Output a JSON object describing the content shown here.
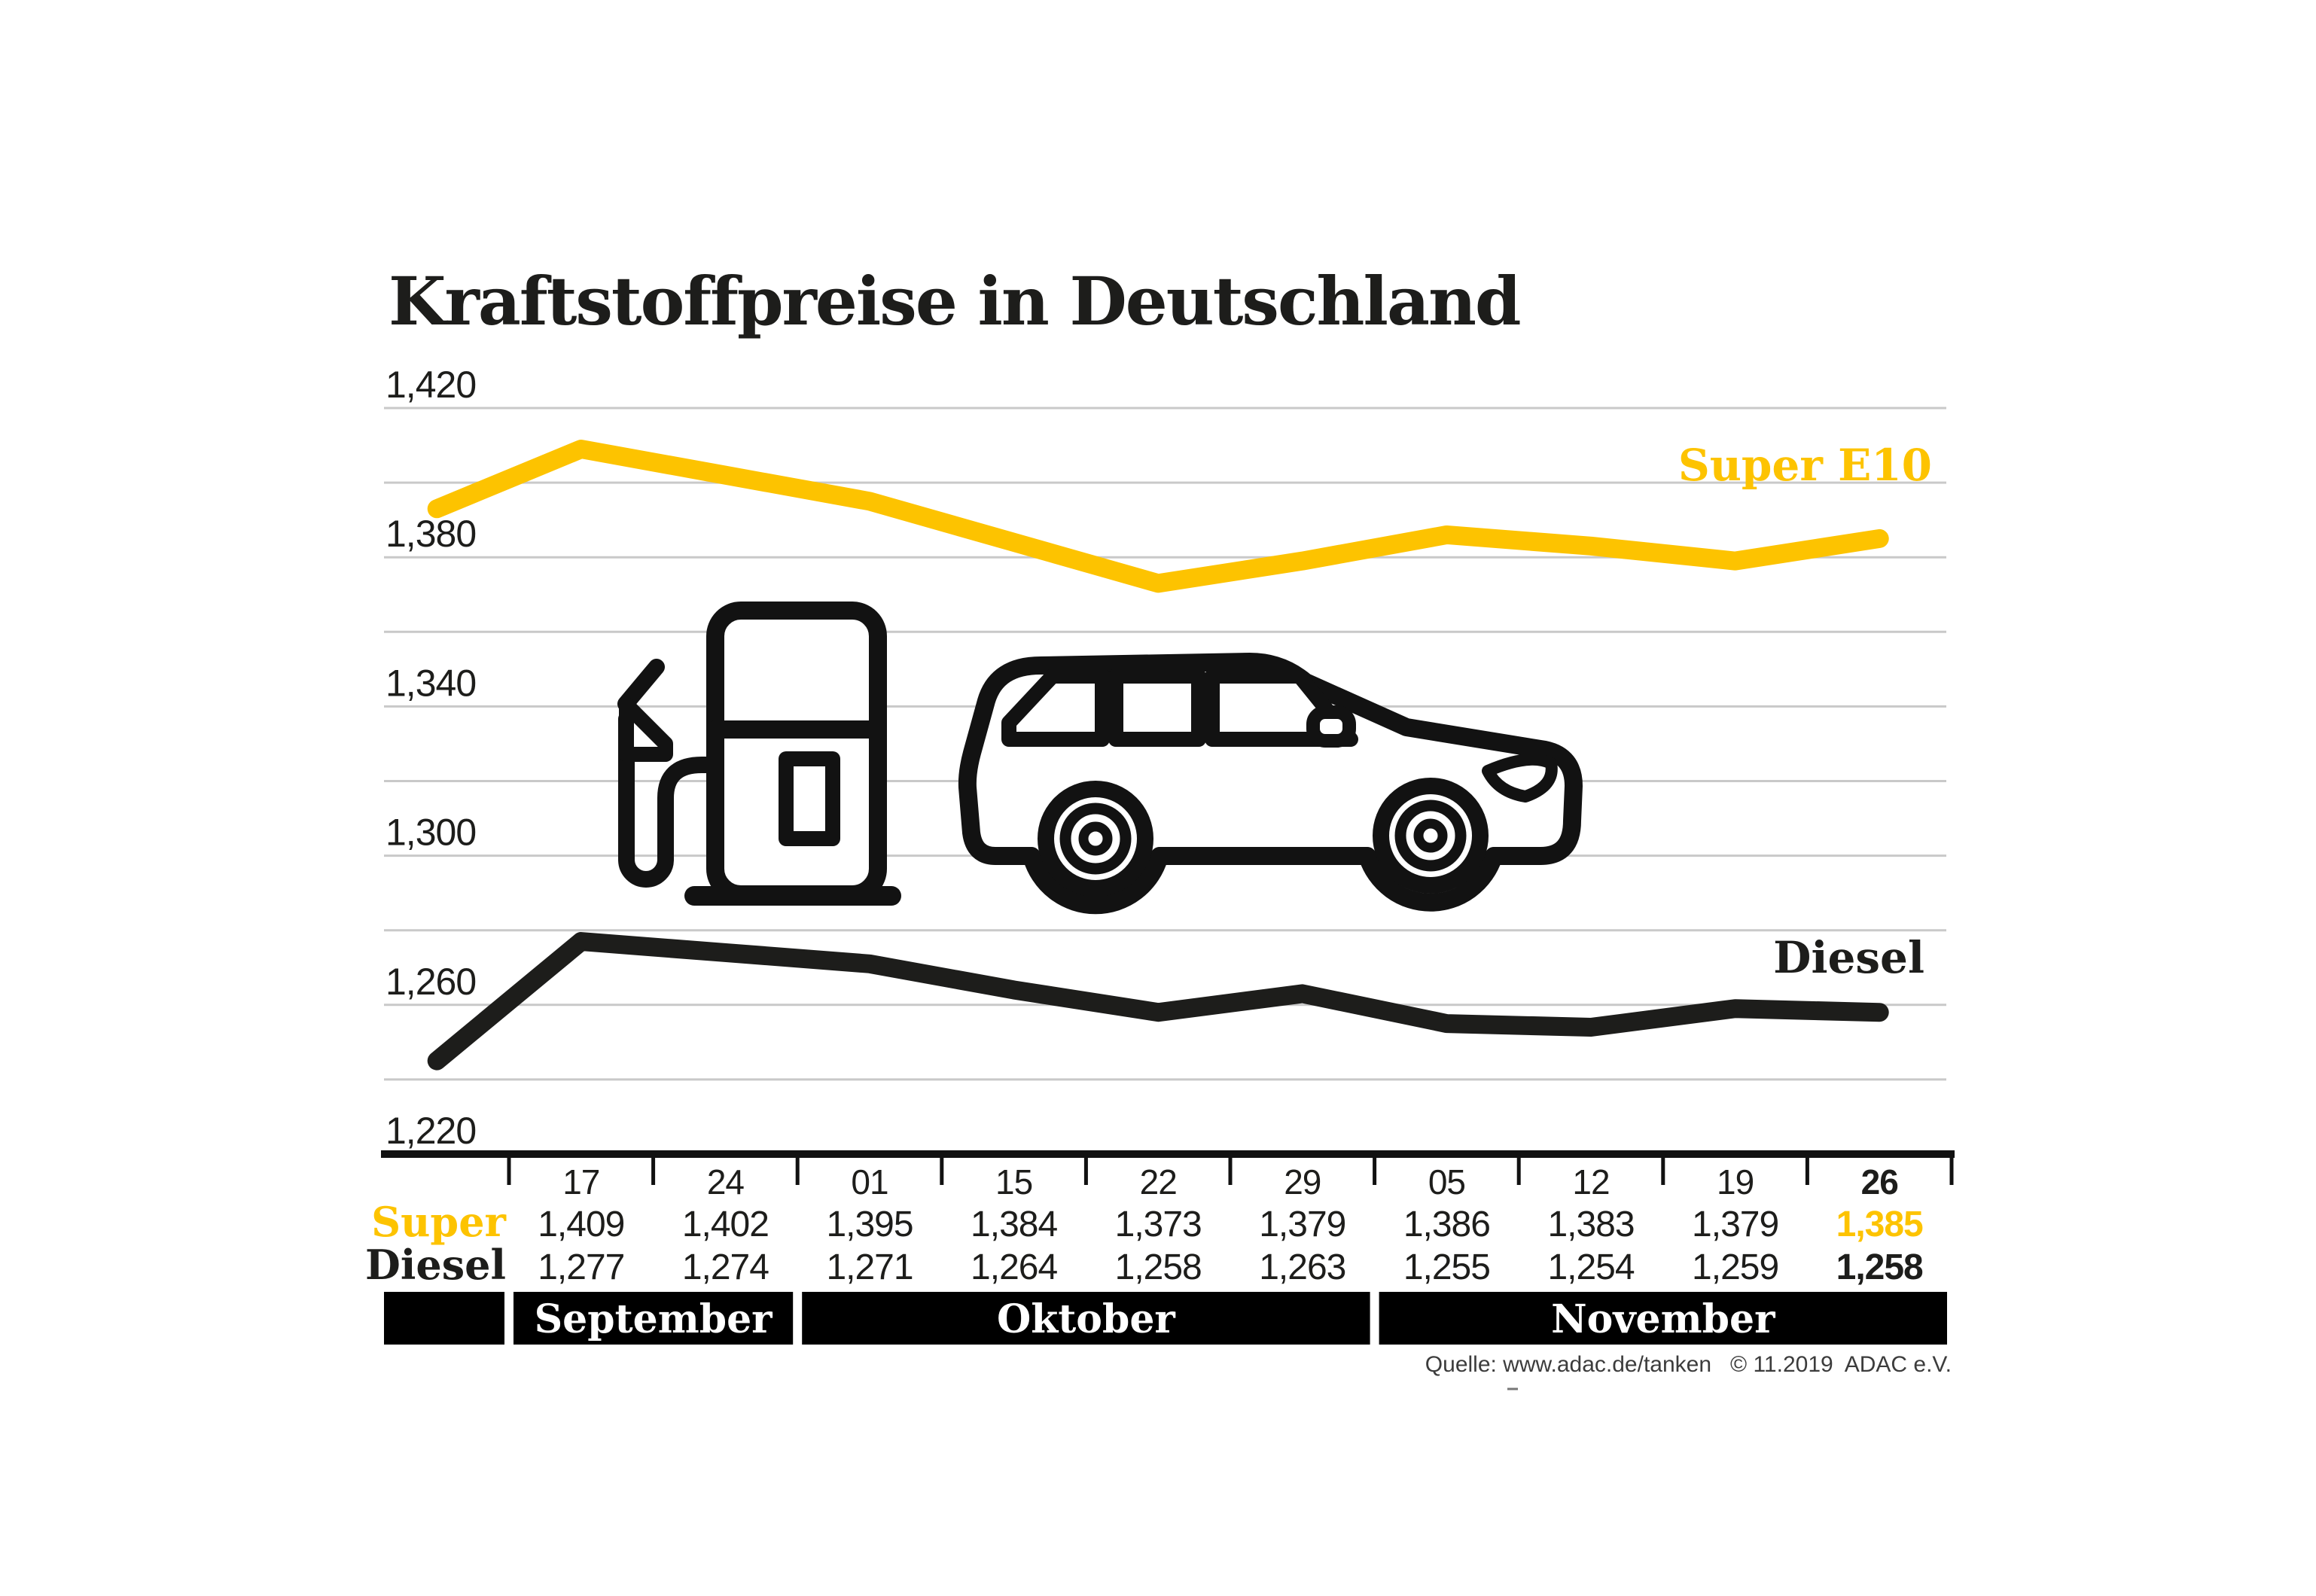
{
  "title": "Kraftstoffpreise in Deutschland",
  "source_note": "Quelle: www.adac.de/tanken   © 11.2019  ADAC e.V.",
  "colors": {
    "super": "#fdc300",
    "diesel": "#1d1d1b",
    "grid": "#c9c9c9",
    "axis": "#111111",
    "month_band_bg": "#000000",
    "month_band_text": "#ffffff"
  },
  "icons": [
    "fuel-pump-icon",
    "car-icon"
  ],
  "chart_data": {
    "type": "line",
    "title": "Kraftstoffpreise in Deutschland",
    "x_tick_labels": [
      "17",
      "24",
      "01",
      "15",
      "22",
      "29",
      "05",
      "12",
      "19",
      "26"
    ],
    "highlight_index": 9,
    "months": [
      {
        "label": "September",
        "from": 0,
        "to": 1
      },
      {
        "label": "Oktober",
        "from": 2,
        "to": 5
      },
      {
        "label": "November",
        "from": 6,
        "to": 9
      }
    ],
    "y_axis": {
      "tick_values": [
        1420,
        1380,
        1340,
        1300,
        1260,
        1220
      ],
      "gridline_step": 20,
      "min": 1220,
      "max": 1420,
      "decimal_format": "comma"
    },
    "legend_position": "right-inline",
    "grid": true,
    "series": [
      {
        "name": "Super E10",
        "row_label": "Super",
        "color": "#fdc300",
        "lead_in_value": 1393,
        "values": [
          1409,
          1402,
          1395,
          1384,
          1373,
          1379,
          1386,
          1383,
          1379,
          1385
        ]
      },
      {
        "name": "Diesel",
        "row_label": "Diesel",
        "color": "#1d1d1b",
        "lead_in_value": 1245,
        "values": [
          1277,
          1274,
          1271,
          1264,
          1258,
          1263,
          1255,
          1254,
          1259,
          1258
        ]
      }
    ]
  }
}
